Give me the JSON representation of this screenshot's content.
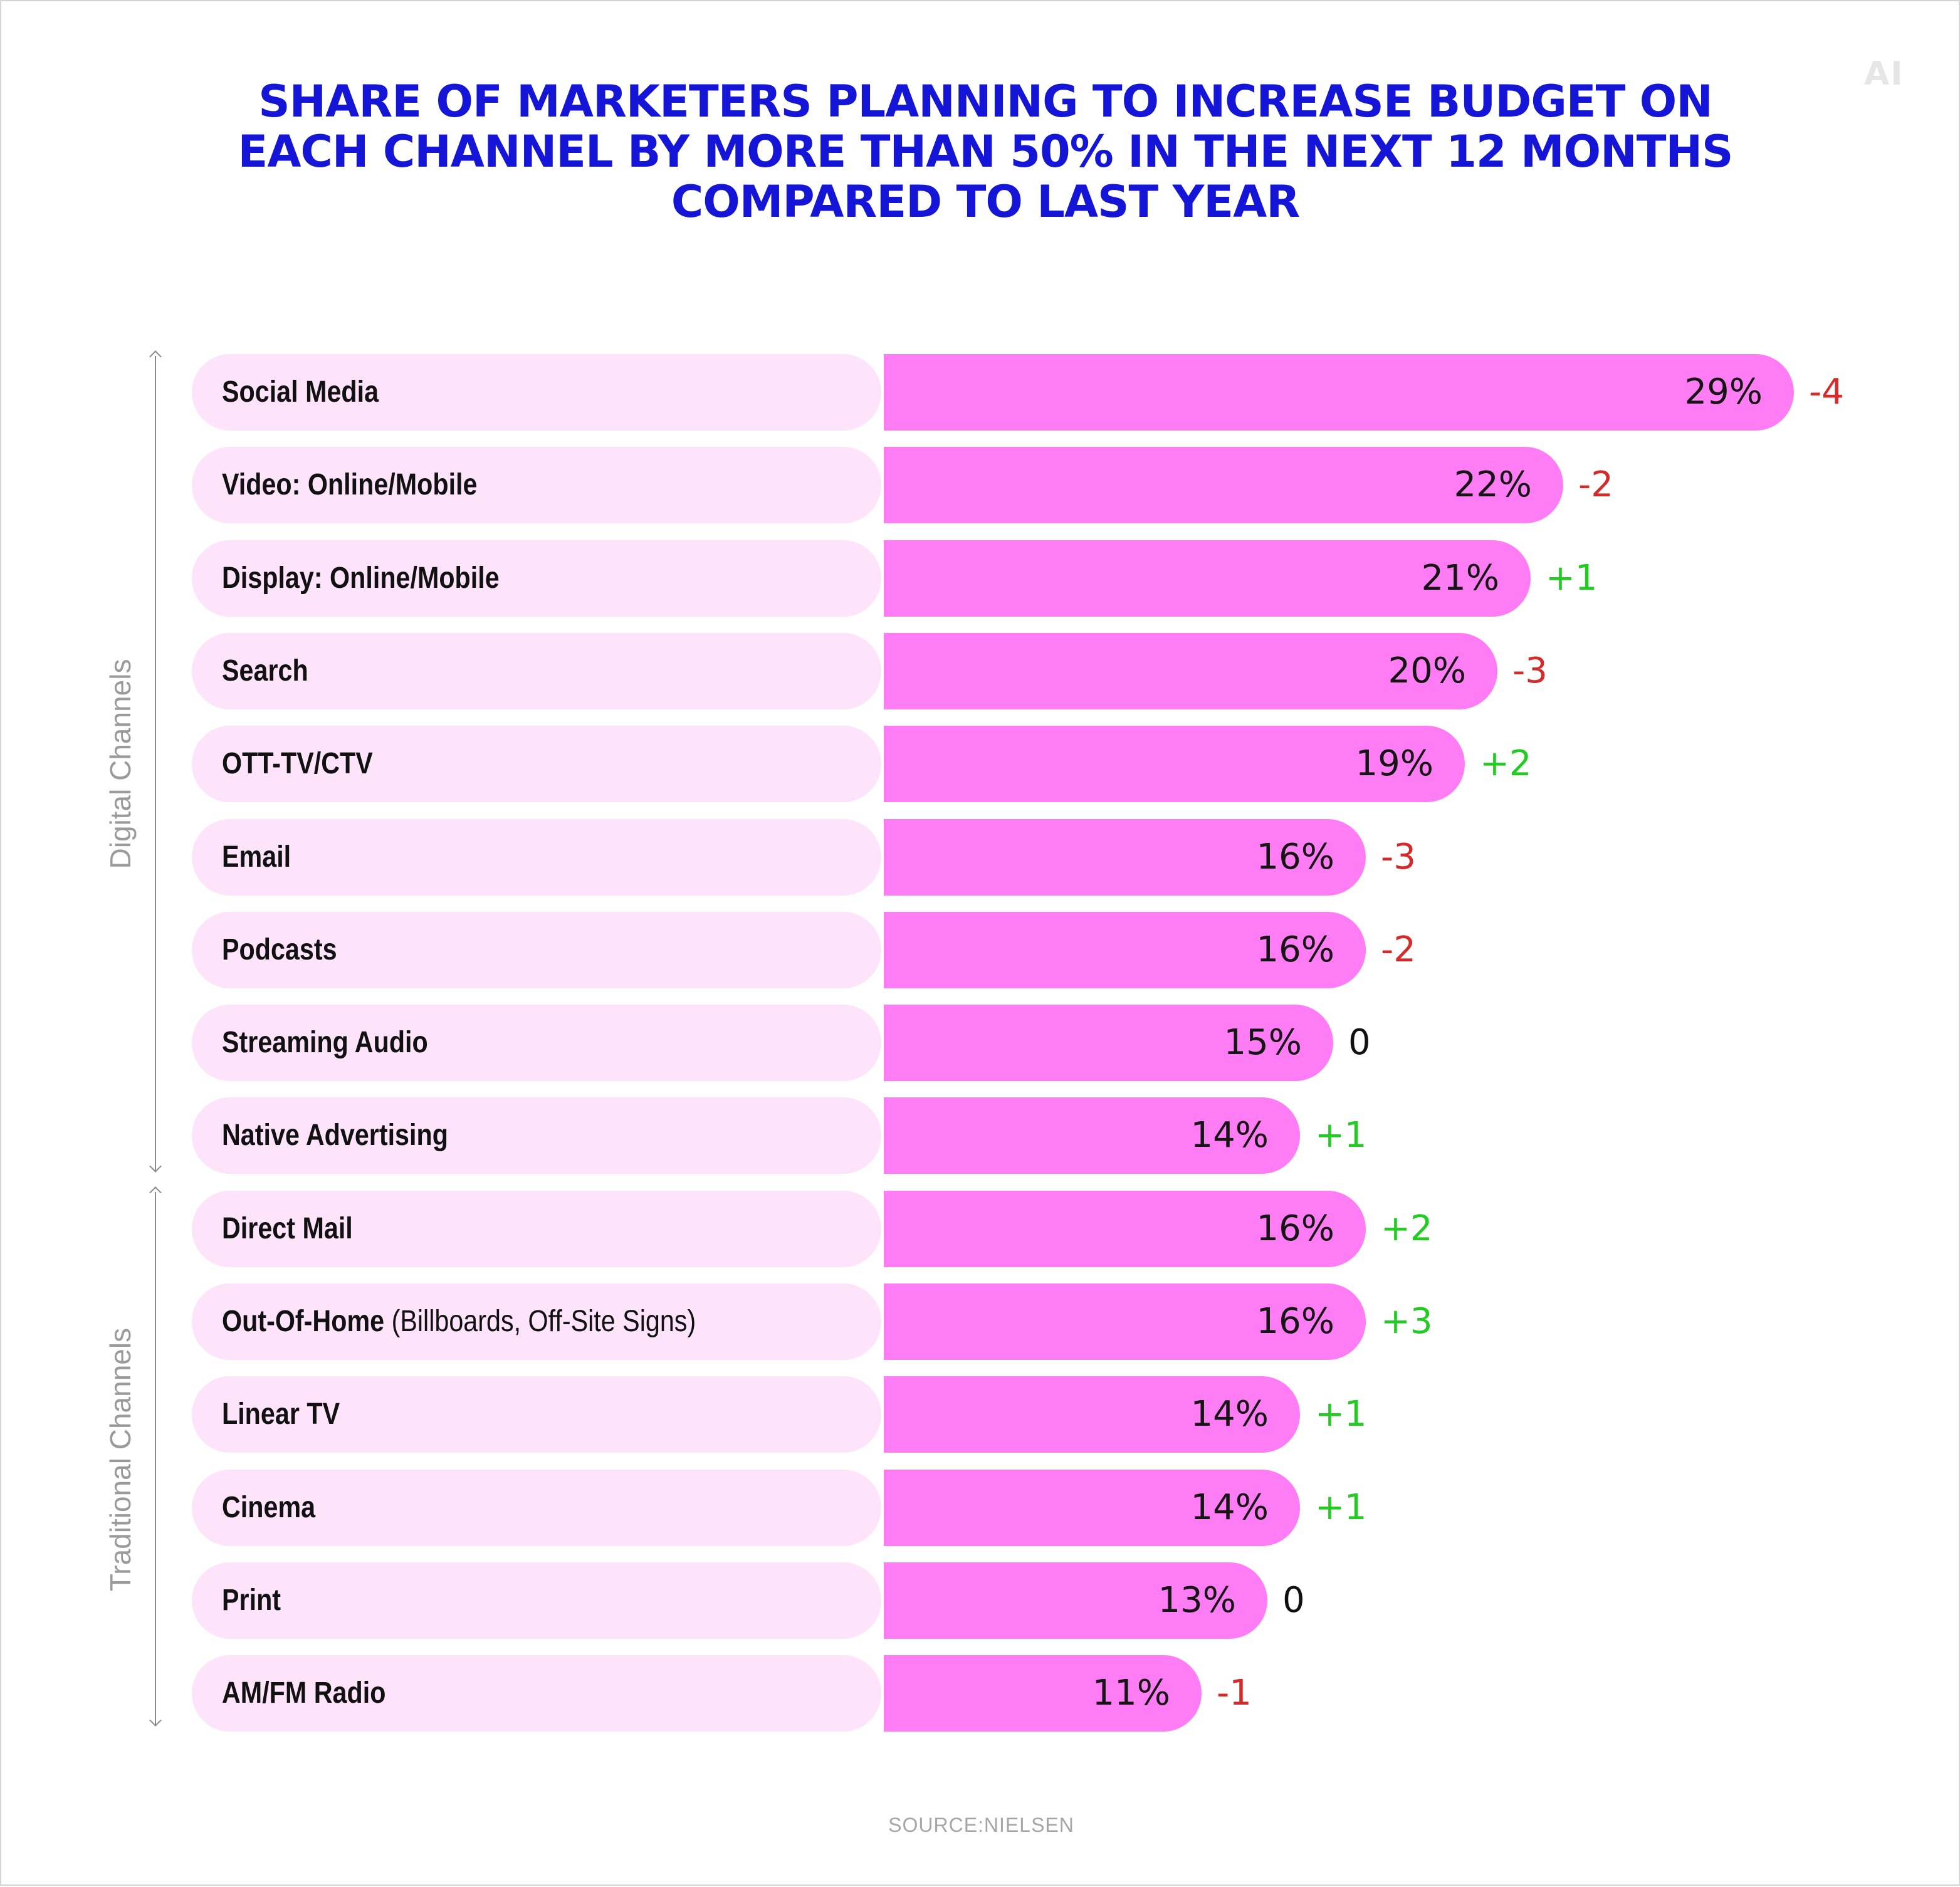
{
  "logo_text": "AI",
  "title": "SHARE OF MARKETERS PLANNING TO INCREASE BUDGET ON EACH CHANNEL BY MORE THAN 50% IN THE NEXT 12 MONTHS COMPARED TO LAST YEAR",
  "source": "SOURCE:NIELSEN",
  "colors": {
    "title": "#1515d8",
    "bar_background": "#fde4fa",
    "bar_fill": "#ff7df4",
    "positive_change": "#22cc22",
    "negative_change": "#d42a2a",
    "zero_change": "#111111"
  },
  "chart_data": {
    "type": "bar",
    "orientation": "horizontal",
    "unit": "%",
    "groups": [
      {
        "name": "Digital Channels",
        "categories": [
          "Social Media",
          "Video: Online/Mobile",
          "Display: Online/Mobile",
          "Search",
          "OTT-TV/CTV",
          "Email",
          "Podcasts",
          "Streaming Audio",
          "Native Advertising"
        ]
      },
      {
        "name": "Traditional Channels",
        "categories": [
          "Direct Mail",
          "Out-Of-Home (Billboards, Off-Site Signs)",
          "Linear TV",
          "Cinema",
          "Print",
          "AM/FM Radio"
        ]
      }
    ],
    "categories": [
      "Social Media",
      "Video: Online/Mobile",
      "Display: Online/Mobile",
      "Search",
      "OTT-TV/CTV",
      "Email",
      "Podcasts",
      "Streaming Audio",
      "Native Advertising",
      "Direct Mail",
      "Out-Of-Home (Billboards, Off-Site Signs)",
      "Linear TV",
      "Cinema",
      "Print",
      "AM/FM Radio"
    ],
    "values": [
      29,
      22,
      21,
      20,
      19,
      16,
      16,
      15,
      14,
      16,
      16,
      14,
      14,
      13,
      11
    ],
    "value_labels": [
      "29%",
      "22%",
      "21%",
      "20%",
      "19%",
      "16%",
      "16%",
      "15%",
      "14%",
      "16%",
      "16%",
      "14%",
      "14%",
      "13%",
      "11%"
    ],
    "changes": [
      -4,
      -2,
      1,
      -3,
      2,
      -3,
      -2,
      0,
      1,
      2,
      3,
      1,
      1,
      0,
      -1
    ],
    "change_labels": [
      "-4",
      "-2",
      "+1",
      "-3",
      "+2",
      "-3",
      "-2",
      "0",
      "+1",
      "+2",
      "+3",
      "+1",
      "+1",
      "0",
      "-1"
    ],
    "rows": [
      {
        "label": "Social Media",
        "note": ""
      },
      {
        "label": "Video: Online/Mobile",
        "note": ""
      },
      {
        "label": "Display: Online/Mobile",
        "note": ""
      },
      {
        "label": "Search",
        "note": ""
      },
      {
        "label": "OTT-TV/CTV",
        "note": ""
      },
      {
        "label": "Email",
        "note": ""
      },
      {
        "label": "Podcasts",
        "note": ""
      },
      {
        "label": "Streaming Audio",
        "note": ""
      },
      {
        "label": "Native Advertising",
        "note": ""
      },
      {
        "label": "Direct Mail",
        "note": ""
      },
      {
        "label": "Out-Of-Home",
        "note": "(Billboards, Off-Site Signs)"
      },
      {
        "label": "Linear TV",
        "note": ""
      },
      {
        "label": "Cinema",
        "note": ""
      },
      {
        "label": "Print",
        "note": ""
      },
      {
        "label": "AM/FM Radio",
        "note": ""
      }
    ],
    "xlabel": "",
    "ylabel": "",
    "grid": false,
    "legend": "none"
  }
}
